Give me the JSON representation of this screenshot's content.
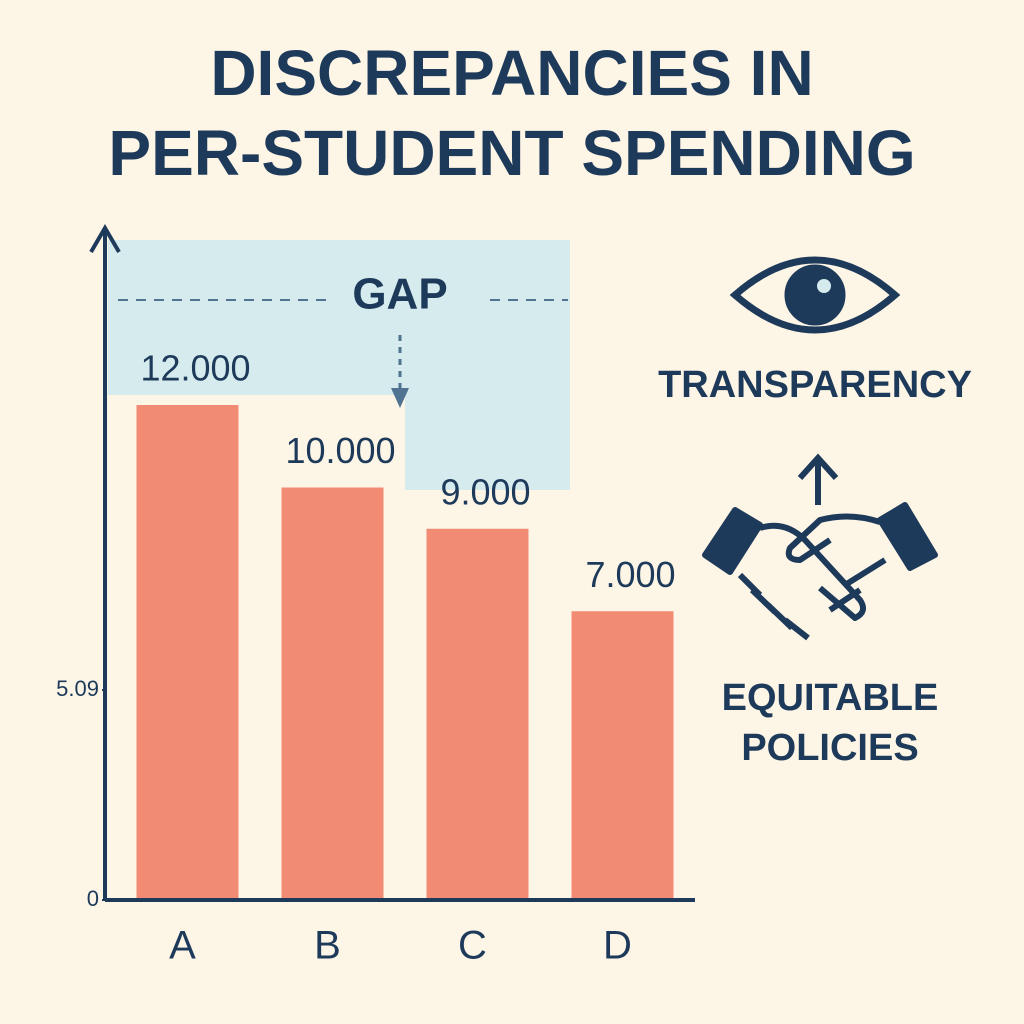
{
  "chart_data": {
    "type": "bar",
    "title": [
      "DISCREPANCIES IN",
      "PER-STUDENT SPENDING"
    ],
    "categories": [
      "A",
      "B",
      "C",
      "D"
    ],
    "values": [
      12000,
      10000,
      9000,
      7000
    ],
    "value_labels": [
      "12.000",
      "10.000",
      "9.000",
      "7.000"
    ],
    "color": "#f28b74",
    "ylim": [
      0,
      16000
    ],
    "yticks": [
      0,
      {
        "value": 5090,
        "label": "5.09"
      }
    ],
    "annotations": {
      "gap": "GAP",
      "transparency": "TRANSPARENCY",
      "equitable": [
        "EQUITABLE",
        "POLICIES"
      ]
    }
  }
}
